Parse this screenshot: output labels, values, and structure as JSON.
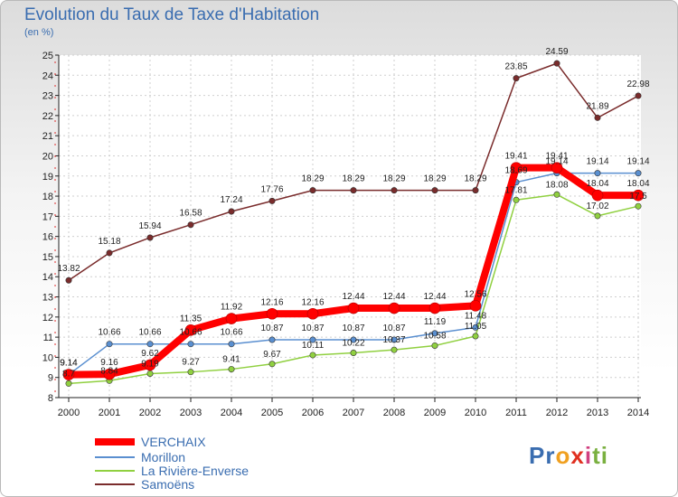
{
  "header": {
    "title": "Evolution du Taux de Taxe d'Habitation",
    "subtitle": "(en %)"
  },
  "logo": {
    "parts": [
      "Pr",
      "o",
      "x",
      "i",
      "ti"
    ],
    "colors": [
      "#3a6db0",
      "#f0a020",
      "#e03020",
      "#d04080",
      "#7ab040"
    ]
  },
  "chart_data": {
    "type": "line",
    "x": [
      "2000",
      "2001",
      "2002",
      "2003",
      "2004",
      "2005",
      "2006",
      "2007",
      "2008",
      "2009",
      "2010",
      "2011",
      "2012",
      "2013",
      "2014"
    ],
    "ylim": [
      8,
      25
    ],
    "yticks": [
      8,
      9,
      10,
      11,
      12,
      13,
      14,
      15,
      16,
      17,
      18,
      19,
      20,
      21,
      22,
      23,
      24,
      25
    ],
    "grid": true,
    "legend_position": "bottom-left",
    "series": [
      {
        "name": "VERCHAIX",
        "color": "#ff0000",
        "values": [
          9.14,
          9.16,
          9.62,
          11.35,
          11.92,
          12.16,
          12.16,
          12.44,
          12.44,
          12.44,
          12.56,
          19.41,
          19.41,
          18.04,
          18.04
        ],
        "labels": [
          "9.14",
          "9.16",
          "9.62",
          "11.35",
          "11.92",
          "12.16",
          "12.16",
          "12.44",
          "12.44",
          "12.44",
          "12.56",
          "19.41",
          "19.41",
          "18.04",
          "18.04"
        ]
      },
      {
        "name": "Morillon",
        "color": "#5a8fd0",
        "values": [
          9.14,
          10.66,
          10.66,
          10.66,
          10.66,
          10.87,
          10.87,
          10.87,
          10.87,
          11.19,
          11.48,
          18.69,
          19.14,
          19.14,
          19.14
        ],
        "labels": [
          "9.14",
          "10.66",
          "10.66",
          "10.66",
          "10.66",
          "10.87",
          "10.87",
          "10.87",
          "10.87",
          "11.19",
          "11.48",
          "18.69",
          "19.14",
          "19.14",
          "19.14"
        ]
      },
      {
        "name": "La Rivière-Enverse",
        "color": "#90d040",
        "values": [
          8.7,
          8.84,
          9.19,
          9.27,
          9.41,
          9.67,
          10.11,
          10.22,
          10.37,
          10.58,
          11.05,
          17.81,
          18.08,
          17.02,
          17.5
        ],
        "labels": [
          "8.7",
          "8.84",
          "9.19",
          "9.27",
          "9.41",
          "9.67",
          "10.11",
          "10.22",
          "10.37",
          "10.58",
          "11.05",
          "17.81",
          "18.08",
          "17.02",
          "17.5"
        ]
      },
      {
        "name": "Samoëns",
        "color": "#7a2c2c",
        "values": [
          13.82,
          15.18,
          15.94,
          16.58,
          17.24,
          17.76,
          18.29,
          18.29,
          18.29,
          18.29,
          18.29,
          23.85,
          24.59,
          21.89,
          22.98
        ],
        "labels": [
          "13.82",
          "15.18",
          "15.94",
          "16.58",
          "17.24",
          "17.76",
          "18.29",
          "18.29",
          "18.29",
          "18.29",
          "18.29",
          "23.85",
          "24.59",
          "21.89",
          "22.98"
        ]
      }
    ]
  }
}
